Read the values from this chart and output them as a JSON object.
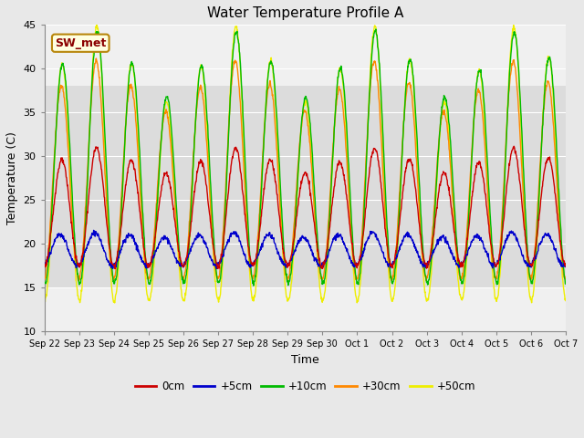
{
  "title": "Water Temperature Profile A",
  "xlabel": "Time",
  "ylabel": "Temperature (C)",
  "ylim": [
    10,
    45
  ],
  "yticks": [
    10,
    15,
    20,
    25,
    30,
    35,
    40,
    45
  ],
  "legend_label": "SW_met",
  "legend_text_color": "#8B0000",
  "legend_bg": "#FFFFE0",
  "legend_border": "#B8860B",
  "series_colors": {
    "0cm": "#CC0000",
    "+5cm": "#0000CC",
    "+10cm": "#00BB00",
    "+30cm": "#FF8800",
    "+50cm": "#EEEE00"
  },
  "series_labels": [
    "0cm",
    "+5cm",
    "+10cm",
    "+30cm",
    "+50cm"
  ],
  "fig_facecolor": "#E8E8E8",
  "plot_bg": "#F0F0F0",
  "grid_color": "#FFFFFF",
  "band_low": 15,
  "band_high": 38,
  "band_color": "#DCDCDC",
  "tick_labels": [
    "Sep 22",
    "Sep 23",
    "Sep 24",
    "Sep 25",
    "Sep 26",
    "Sep 27",
    "Sep 28",
    "Sep 29",
    "Sep 30",
    "Oct 1",
    "Oct 2",
    "Oct 3",
    "Oct 4",
    "Oct 5",
    "Oct 6",
    "Oct 7"
  ]
}
